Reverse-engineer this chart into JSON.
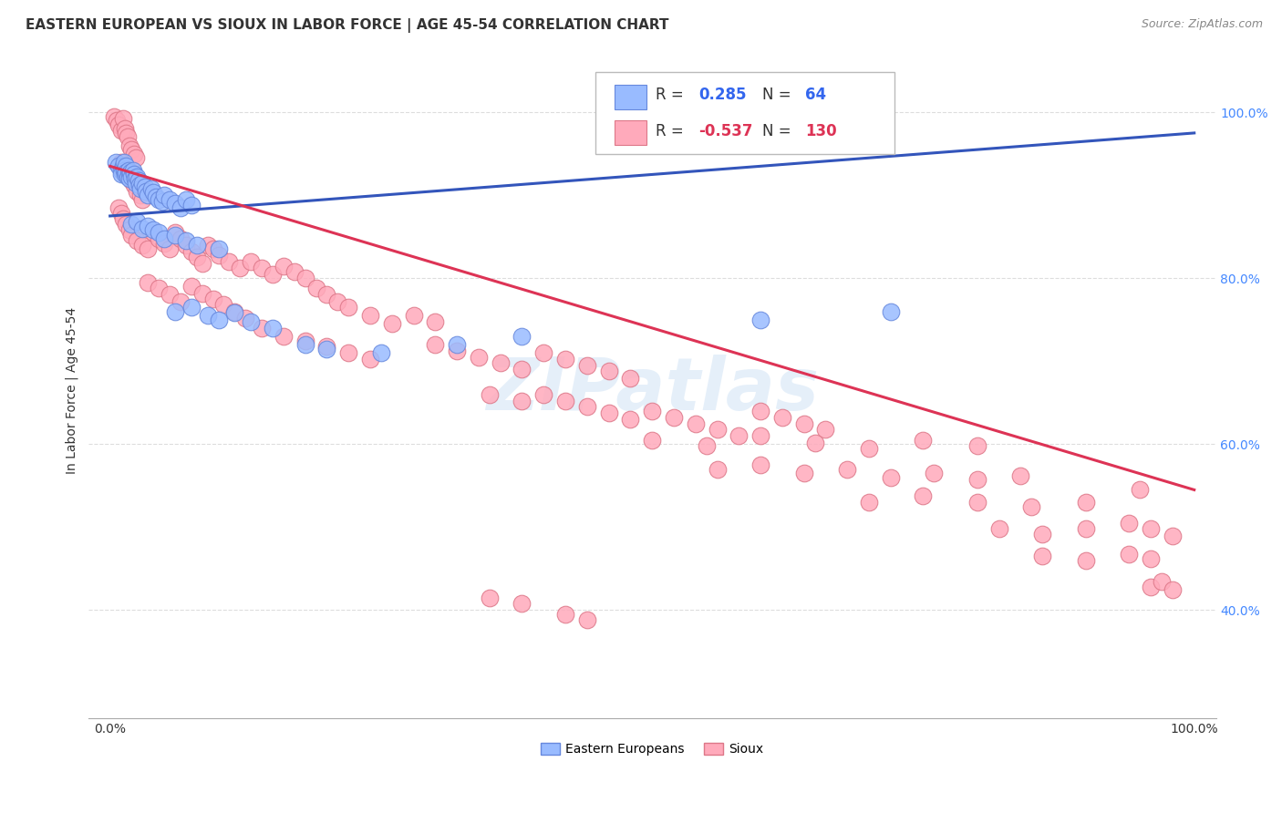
{
  "title": "EASTERN EUROPEAN VS SIOUX IN LABOR FORCE | AGE 45-54 CORRELATION CHART",
  "source": "Source: ZipAtlas.com",
  "ylabel": "In Labor Force | Age 45-54",
  "xlim": [
    -0.02,
    1.02
  ],
  "ylim": [
    0.27,
    1.06
  ],
  "xtick_positions": [
    0.0,
    1.0
  ],
  "xtick_labels": [
    "0.0%",
    "100.0%"
  ],
  "ytick_positions": [
    0.4,
    0.6,
    0.8,
    1.0
  ],
  "ytick_labels": [
    "40.0%",
    "60.0%",
    "80.0%",
    "100.0%"
  ],
  "blue_color": "#99BBFF",
  "pink_color": "#FFAABB",
  "blue_edge": "#6688DD",
  "pink_edge": "#DD7788",
  "blue_R": 0.285,
  "blue_N": 64,
  "pink_R": -0.537,
  "pink_N": 130,
  "blue_trend_x": [
    0.0,
    1.0
  ],
  "blue_trend_y": [
    0.875,
    0.975
  ],
  "pink_trend_x": [
    0.0,
    1.0
  ],
  "pink_trend_y": [
    0.935,
    0.545
  ],
  "legend_label_blue": "Eastern Europeans",
  "legend_label_pink": "Sioux",
  "watermark": "ZIPatlas",
  "background_color": "#ffffff",
  "grid_color": "#dddddd",
  "title_fontsize": 11,
  "axis_fontsize": 10,
  "tick_fontsize": 10,
  "blue_points": [
    [
      0.005,
      0.94
    ],
    [
      0.008,
      0.935
    ],
    [
      0.01,
      0.93
    ],
    [
      0.01,
      0.925
    ],
    [
      0.012,
      0.935
    ],
    [
      0.013,
      0.94
    ],
    [
      0.013,
      0.93
    ],
    [
      0.014,
      0.925
    ],
    [
      0.015,
      0.935
    ],
    [
      0.015,
      0.928
    ],
    [
      0.016,
      0.922
    ],
    [
      0.017,
      0.93
    ],
    [
      0.018,
      0.925
    ],
    [
      0.018,
      0.92
    ],
    [
      0.019,
      0.928
    ],
    [
      0.02,
      0.922
    ],
    [
      0.021,
      0.93
    ],
    [
      0.022,
      0.925
    ],
    [
      0.023,
      0.92
    ],
    [
      0.024,
      0.915
    ],
    [
      0.025,
      0.922
    ],
    [
      0.026,
      0.918
    ],
    [
      0.027,
      0.912
    ],
    [
      0.028,
      0.908
    ],
    [
      0.03,
      0.915
    ],
    [
      0.032,
      0.91
    ],
    [
      0.033,
      0.905
    ],
    [
      0.035,
      0.9
    ],
    [
      0.038,
      0.908
    ],
    [
      0.04,
      0.903
    ],
    [
      0.042,
      0.898
    ],
    [
      0.045,
      0.895
    ],
    [
      0.048,
      0.892
    ],
    [
      0.05,
      0.9
    ],
    [
      0.055,
      0.895
    ],
    [
      0.06,
      0.89
    ],
    [
      0.065,
      0.885
    ],
    [
      0.07,
      0.895
    ],
    [
      0.075,
      0.888
    ],
    [
      0.02,
      0.865
    ],
    [
      0.025,
      0.868
    ],
    [
      0.03,
      0.86
    ],
    [
      0.035,
      0.863
    ],
    [
      0.04,
      0.858
    ],
    [
      0.045,
      0.855
    ],
    [
      0.05,
      0.848
    ],
    [
      0.06,
      0.852
    ],
    [
      0.07,
      0.845
    ],
    [
      0.08,
      0.84
    ],
    [
      0.1,
      0.835
    ],
    [
      0.06,
      0.76
    ],
    [
      0.075,
      0.765
    ],
    [
      0.09,
      0.755
    ],
    [
      0.1,
      0.75
    ],
    [
      0.115,
      0.758
    ],
    [
      0.13,
      0.748
    ],
    [
      0.15,
      0.74
    ],
    [
      0.18,
      0.72
    ],
    [
      0.2,
      0.715
    ],
    [
      0.25,
      0.71
    ],
    [
      0.32,
      0.72
    ],
    [
      0.38,
      0.73
    ],
    [
      0.6,
      0.75
    ],
    [
      0.72,
      0.76
    ]
  ],
  "pink_points": [
    [
      0.004,
      0.995
    ],
    [
      0.006,
      0.99
    ],
    [
      0.008,
      0.985
    ],
    [
      0.01,
      0.978
    ],
    [
      0.012,
      0.992
    ],
    [
      0.014,
      0.98
    ],
    [
      0.015,
      0.975
    ],
    [
      0.016,
      0.97
    ],
    [
      0.018,
      0.96
    ],
    [
      0.02,
      0.955
    ],
    [
      0.022,
      0.95
    ],
    [
      0.024,
      0.945
    ],
    [
      0.01,
      0.94
    ],
    [
      0.012,
      0.935
    ],
    [
      0.015,
      0.928
    ],
    [
      0.018,
      0.922
    ],
    [
      0.02,
      0.918
    ],
    [
      0.022,
      0.912
    ],
    [
      0.025,
      0.905
    ],
    [
      0.028,
      0.9
    ],
    [
      0.03,
      0.895
    ],
    [
      0.008,
      0.885
    ],
    [
      0.01,
      0.878
    ],
    [
      0.012,
      0.872
    ],
    [
      0.015,
      0.865
    ],
    [
      0.018,
      0.858
    ],
    [
      0.02,
      0.852
    ],
    [
      0.025,
      0.845
    ],
    [
      0.03,
      0.84
    ],
    [
      0.035,
      0.835
    ],
    [
      0.04,
      0.855
    ],
    [
      0.045,
      0.848
    ],
    [
      0.05,
      0.842
    ],
    [
      0.055,
      0.835
    ],
    [
      0.06,
      0.855
    ],
    [
      0.065,
      0.848
    ],
    [
      0.07,
      0.84
    ],
    [
      0.075,
      0.832
    ],
    [
      0.08,
      0.825
    ],
    [
      0.085,
      0.818
    ],
    [
      0.09,
      0.84
    ],
    [
      0.095,
      0.835
    ],
    [
      0.1,
      0.828
    ],
    [
      0.11,
      0.82
    ],
    [
      0.12,
      0.812
    ],
    [
      0.13,
      0.82
    ],
    [
      0.14,
      0.812
    ],
    [
      0.15,
      0.805
    ],
    [
      0.16,
      0.815
    ],
    [
      0.17,
      0.808
    ],
    [
      0.18,
      0.8
    ],
    [
      0.035,
      0.795
    ],
    [
      0.045,
      0.788
    ],
    [
      0.055,
      0.78
    ],
    [
      0.065,
      0.772
    ],
    [
      0.075,
      0.79
    ],
    [
      0.085,
      0.782
    ],
    [
      0.095,
      0.775
    ],
    [
      0.105,
      0.768
    ],
    [
      0.115,
      0.76
    ],
    [
      0.125,
      0.752
    ],
    [
      0.19,
      0.788
    ],
    [
      0.2,
      0.78
    ],
    [
      0.21,
      0.772
    ],
    [
      0.22,
      0.765
    ],
    [
      0.24,
      0.755
    ],
    [
      0.26,
      0.745
    ],
    [
      0.28,
      0.755
    ],
    [
      0.3,
      0.748
    ],
    [
      0.14,
      0.74
    ],
    [
      0.16,
      0.73
    ],
    [
      0.18,
      0.725
    ],
    [
      0.2,
      0.718
    ],
    [
      0.22,
      0.71
    ],
    [
      0.24,
      0.702
    ],
    [
      0.3,
      0.72
    ],
    [
      0.32,
      0.712
    ],
    [
      0.34,
      0.705
    ],
    [
      0.36,
      0.698
    ],
    [
      0.38,
      0.69
    ],
    [
      0.4,
      0.71
    ],
    [
      0.42,
      0.702
    ],
    [
      0.44,
      0.695
    ],
    [
      0.46,
      0.688
    ],
    [
      0.48,
      0.68
    ],
    [
      0.35,
      0.66
    ],
    [
      0.38,
      0.652
    ],
    [
      0.4,
      0.66
    ],
    [
      0.42,
      0.652
    ],
    [
      0.44,
      0.645
    ],
    [
      0.46,
      0.638
    ],
    [
      0.48,
      0.63
    ],
    [
      0.5,
      0.64
    ],
    [
      0.52,
      0.632
    ],
    [
      0.54,
      0.625
    ],
    [
      0.56,
      0.618
    ],
    [
      0.58,
      0.61
    ],
    [
      0.6,
      0.64
    ],
    [
      0.62,
      0.632
    ],
    [
      0.64,
      0.625
    ],
    [
      0.66,
      0.618
    ],
    [
      0.5,
      0.605
    ],
    [
      0.55,
      0.598
    ],
    [
      0.6,
      0.61
    ],
    [
      0.65,
      0.602
    ],
    [
      0.7,
      0.595
    ],
    [
      0.75,
      0.605
    ],
    [
      0.8,
      0.598
    ],
    [
      0.56,
      0.57
    ],
    [
      0.6,
      0.575
    ],
    [
      0.64,
      0.565
    ],
    [
      0.68,
      0.57
    ],
    [
      0.72,
      0.56
    ],
    [
      0.76,
      0.565
    ],
    [
      0.8,
      0.558
    ],
    [
      0.84,
      0.562
    ],
    [
      0.7,
      0.53
    ],
    [
      0.75,
      0.538
    ],
    [
      0.8,
      0.53
    ],
    [
      0.85,
      0.525
    ],
    [
      0.9,
      0.53
    ],
    [
      0.95,
      0.545
    ],
    [
      0.82,
      0.498
    ],
    [
      0.86,
      0.492
    ],
    [
      0.9,
      0.498
    ],
    [
      0.94,
      0.505
    ],
    [
      0.96,
      0.498
    ],
    [
      0.98,
      0.49
    ],
    [
      0.86,
      0.465
    ],
    [
      0.9,
      0.46
    ],
    [
      0.94,
      0.468
    ],
    [
      0.96,
      0.462
    ],
    [
      0.96,
      0.428
    ],
    [
      0.97,
      0.435
    ],
    [
      0.98,
      0.425
    ],
    [
      0.35,
      0.415
    ],
    [
      0.38,
      0.408
    ],
    [
      0.42,
      0.395
    ],
    [
      0.44,
      0.388
    ]
  ]
}
